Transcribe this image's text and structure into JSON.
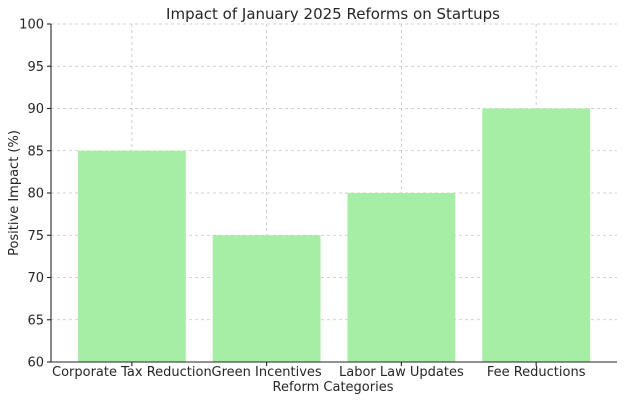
{
  "chart_data": {
    "type": "bar",
    "title": "Impact of January 2025 Reforms on Startups",
    "xlabel": "Reform Categories",
    "ylabel": "Positive Impact (%)",
    "categories": [
      "Corporate Tax Reduction",
      "Green Incentives",
      "Labor Law Updates",
      "Fee Reductions"
    ],
    "values": [
      85,
      75,
      80,
      90
    ],
    "ylim": [
      60,
      100
    ],
    "yticks": [
      60,
      65,
      70,
      75,
      80,
      85,
      90,
      95,
      100
    ],
    "bar_color": "#a6eda5",
    "grid": true,
    "legend": "none"
  }
}
